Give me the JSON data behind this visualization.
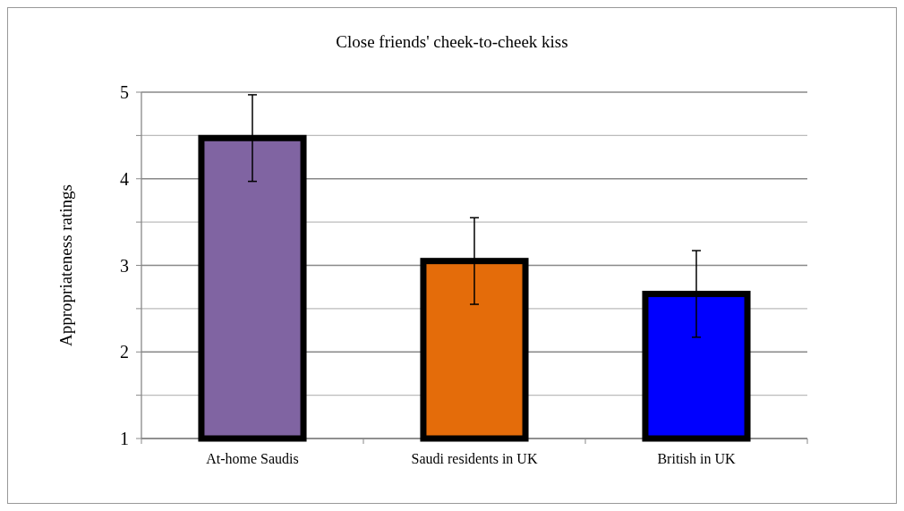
{
  "chart_data": {
    "type": "bar",
    "title": "Close friends' cheek-to-cheek kiss",
    "ylabel": "Appropriateness ratings",
    "categories": [
      "At-home Saudis",
      "Saudi residents in UK",
      "British in UK"
    ],
    "values": [
      4.47,
      3.05,
      2.67
    ],
    "colors": [
      "#8064a2",
      "#e46c0a",
      "#0000ff"
    ],
    "errors": [
      0.5,
      0.5,
      0.5
    ],
    "ylim": [
      1,
      5
    ],
    "yticks": [
      1,
      {
        "value": 1.5,
        "label": null
      },
      2,
      {
        "value": 2.5,
        "label": null
      },
      3,
      {
        "value": 3.5,
        "label": null
      },
      4,
      {
        "value": 4.5,
        "label": null
      },
      5
    ],
    "grid": true
  }
}
